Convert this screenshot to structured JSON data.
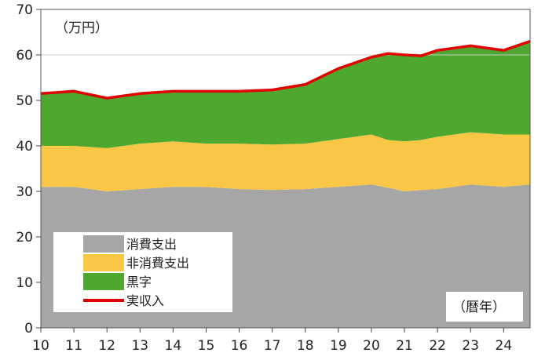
{
  "chart_data": {
    "type": "area",
    "unit_label": "（万円）",
    "x_axis_label": "（暦年）",
    "ylim": [
      0,
      70
    ],
    "y_ticks": [
      0,
      10,
      20,
      30,
      40,
      50,
      60,
      70
    ],
    "x_ticks": [
      "10",
      "11",
      "12",
      "13",
      "14",
      "15",
      "16",
      "17",
      "18",
      "19",
      "20",
      "21",
      "22",
      "23",
      "24"
    ],
    "x": [
      2010,
      2011,
      2012,
      2013,
      2014,
      2015,
      2016,
      2017,
      2018,
      2019,
      2020,
      2020.5,
      2021,
      2021.5,
      2022,
      2023,
      2024,
      2024.8
    ],
    "grid": "horizontal line at 60",
    "series": [
      {
        "name": "消費支出",
        "type": "stacked-area",
        "color": "#a6a6a6",
        "values": [
          31,
          31,
          30,
          30.5,
          31,
          31,
          30.5,
          30.3,
          30.5,
          31,
          31.5,
          30.8,
          30,
          30.3,
          30.5,
          31.5,
          31,
          31.5
        ]
      },
      {
        "name": "非消費支出",
        "type": "stacked-area",
        "color": "#f9c646",
        "values": [
          9,
          9,
          9.5,
          10,
          10,
          9.5,
          10,
          10,
          10,
          10.5,
          11,
          10.5,
          11,
          11,
          11.5,
          11.5,
          11.5,
          11
        ]
      },
      {
        "name": "黒字",
        "type": "stacked-area",
        "color": "#4ea72e",
        "values": [
          11.5,
          12,
          11,
          11,
          11,
          11.5,
          11.5,
          12,
          13,
          15.5,
          17,
          19,
          19,
          18.5,
          19,
          19,
          18.5,
          20.5
        ]
      },
      {
        "name": "実収入",
        "type": "line",
        "color": "#e00000",
        "values": [
          51.5,
          52,
          50.5,
          51.5,
          52,
          52,
          52,
          52.3,
          53.5,
          57,
          59.5,
          60.3,
          60,
          59.8,
          61,
          62,
          61,
          63
        ]
      }
    ],
    "legend_position": "bottom-left"
  }
}
